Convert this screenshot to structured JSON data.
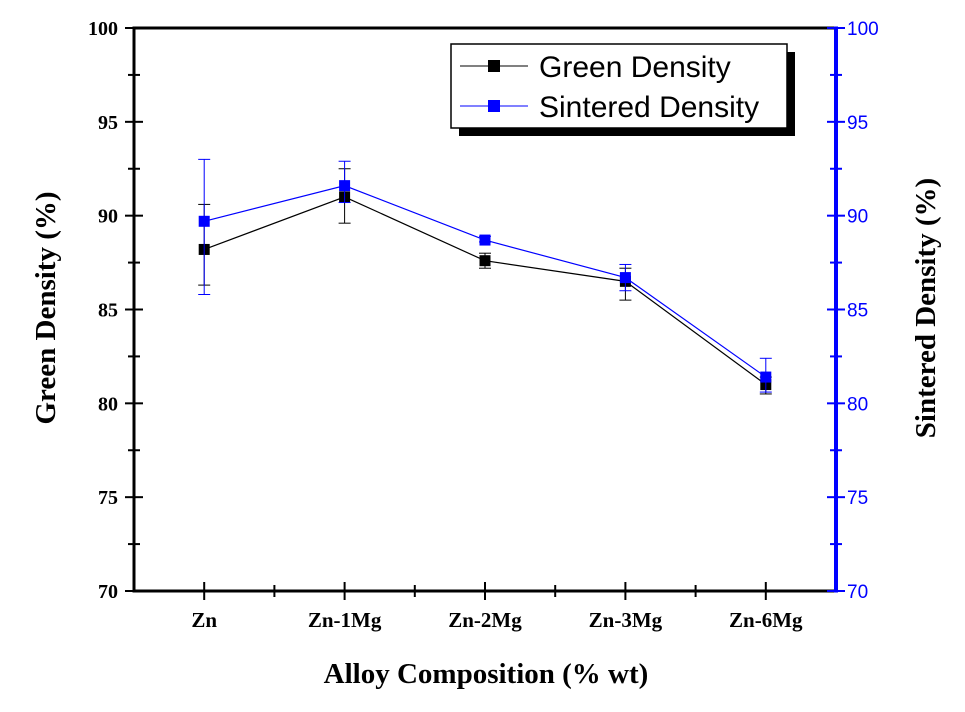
{
  "chart_data": {
    "type": "line",
    "categories": [
      "Zn",
      "Zn-1Mg",
      "Zn-2Mg",
      "Zn-3Mg",
      "Zn-6Mg"
    ],
    "xlabel": "Alloy Composition (% wt)",
    "ylabel_left": "Green Density (%)",
    "ylabel_right": "Sintered Density (%)",
    "ylim": [
      70,
      100
    ],
    "yticks": [
      70,
      75,
      80,
      85,
      90,
      95,
      100
    ],
    "grid": false,
    "legend_position": "top-right",
    "series": [
      {
        "name": "Green Density",
        "axis": "left",
        "color": "#000000",
        "values": [
          88.2,
          91.0,
          87.6,
          86.5,
          81.0
        ],
        "err_low": [
          86.3,
          89.6,
          87.2,
          85.5,
          80.5
        ],
        "err_high": [
          90.6,
          92.5,
          88.0,
          87.2,
          81.4
        ]
      },
      {
        "name": "Sintered Density",
        "axis": "right",
        "color": "#0000ff",
        "values": [
          89.7,
          91.6,
          88.7,
          86.7,
          81.4
        ],
        "err_low": [
          85.8,
          90.7,
          88.6,
          86.0,
          80.6
        ],
        "err_high": [
          93.0,
          92.9,
          88.9,
          87.4,
          82.4
        ]
      }
    ]
  }
}
